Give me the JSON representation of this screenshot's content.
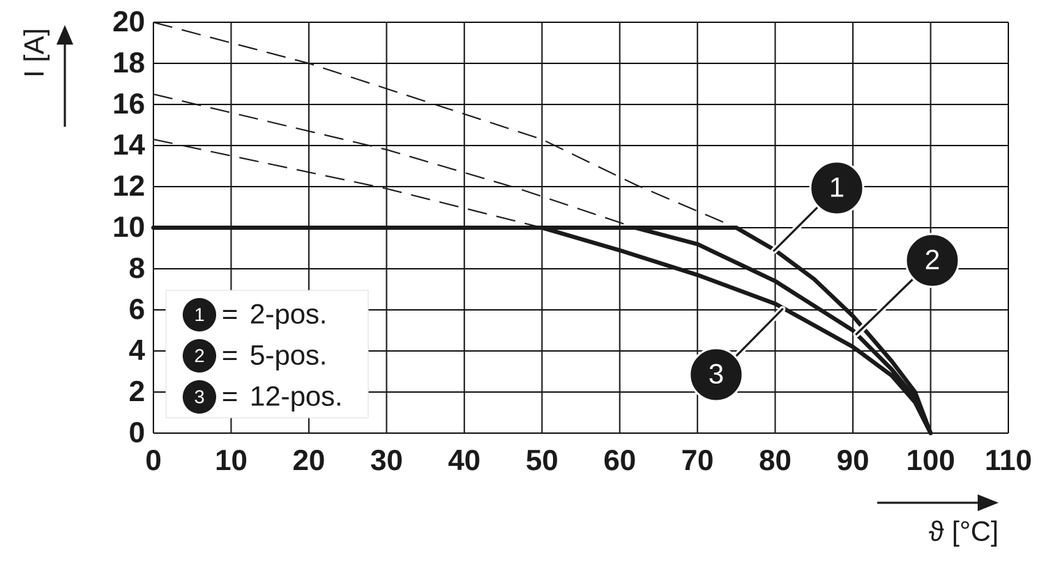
{
  "chart_data": {
    "type": "line",
    "y_label": "I [A]",
    "x_label": "ϑ [°C]",
    "xlim": [
      0,
      110
    ],
    "ylim": [
      0,
      20
    ],
    "xticks": [
      0,
      10,
      20,
      30,
      40,
      50,
      60,
      70,
      80,
      90,
      100,
      110
    ],
    "yticks": [
      0,
      2,
      4,
      6,
      8,
      10,
      12,
      14,
      16,
      18,
      20
    ],
    "grid": true,
    "series": [
      {
        "marker": "1",
        "name": "2-pos.",
        "color": "#1a1a1a",
        "x": [
          0,
          75,
          80,
          85,
          90,
          95,
          98,
          100
        ],
        "values": [
          10,
          10,
          8.9,
          7.5,
          5.7,
          3.5,
          2,
          0
        ],
        "dashed_x": [
          0,
          20,
          50,
          62,
          75
        ],
        "dashed_values": [
          20,
          18,
          14.3,
          12.1,
          10
        ]
      },
      {
        "marker": "2",
        "name": "5-pos.",
        "color": "#1a1a1a",
        "x": [
          0,
          62,
          70,
          80,
          90,
          95,
          98,
          100
        ],
        "values": [
          10,
          10,
          9.2,
          7.4,
          5,
          3.1,
          1.7,
          0
        ],
        "dashed_x": [
          0,
          30,
          47,
          62
        ],
        "dashed_values": [
          16.5,
          13.8,
          11.9,
          10
        ]
      },
      {
        "marker": "3",
        "name": "12-pos.",
        "color": "#1a1a1a",
        "x": [
          0,
          50,
          60,
          70,
          80,
          90,
          95,
          98,
          100
        ],
        "values": [
          10,
          10,
          8.9,
          7.7,
          6.3,
          4.2,
          2.8,
          1.5,
          0
        ],
        "dashed_x": [
          0,
          30,
          50
        ],
        "dashed_values": [
          14.3,
          11.9,
          10
        ]
      }
    ],
    "legend_separator": "="
  }
}
